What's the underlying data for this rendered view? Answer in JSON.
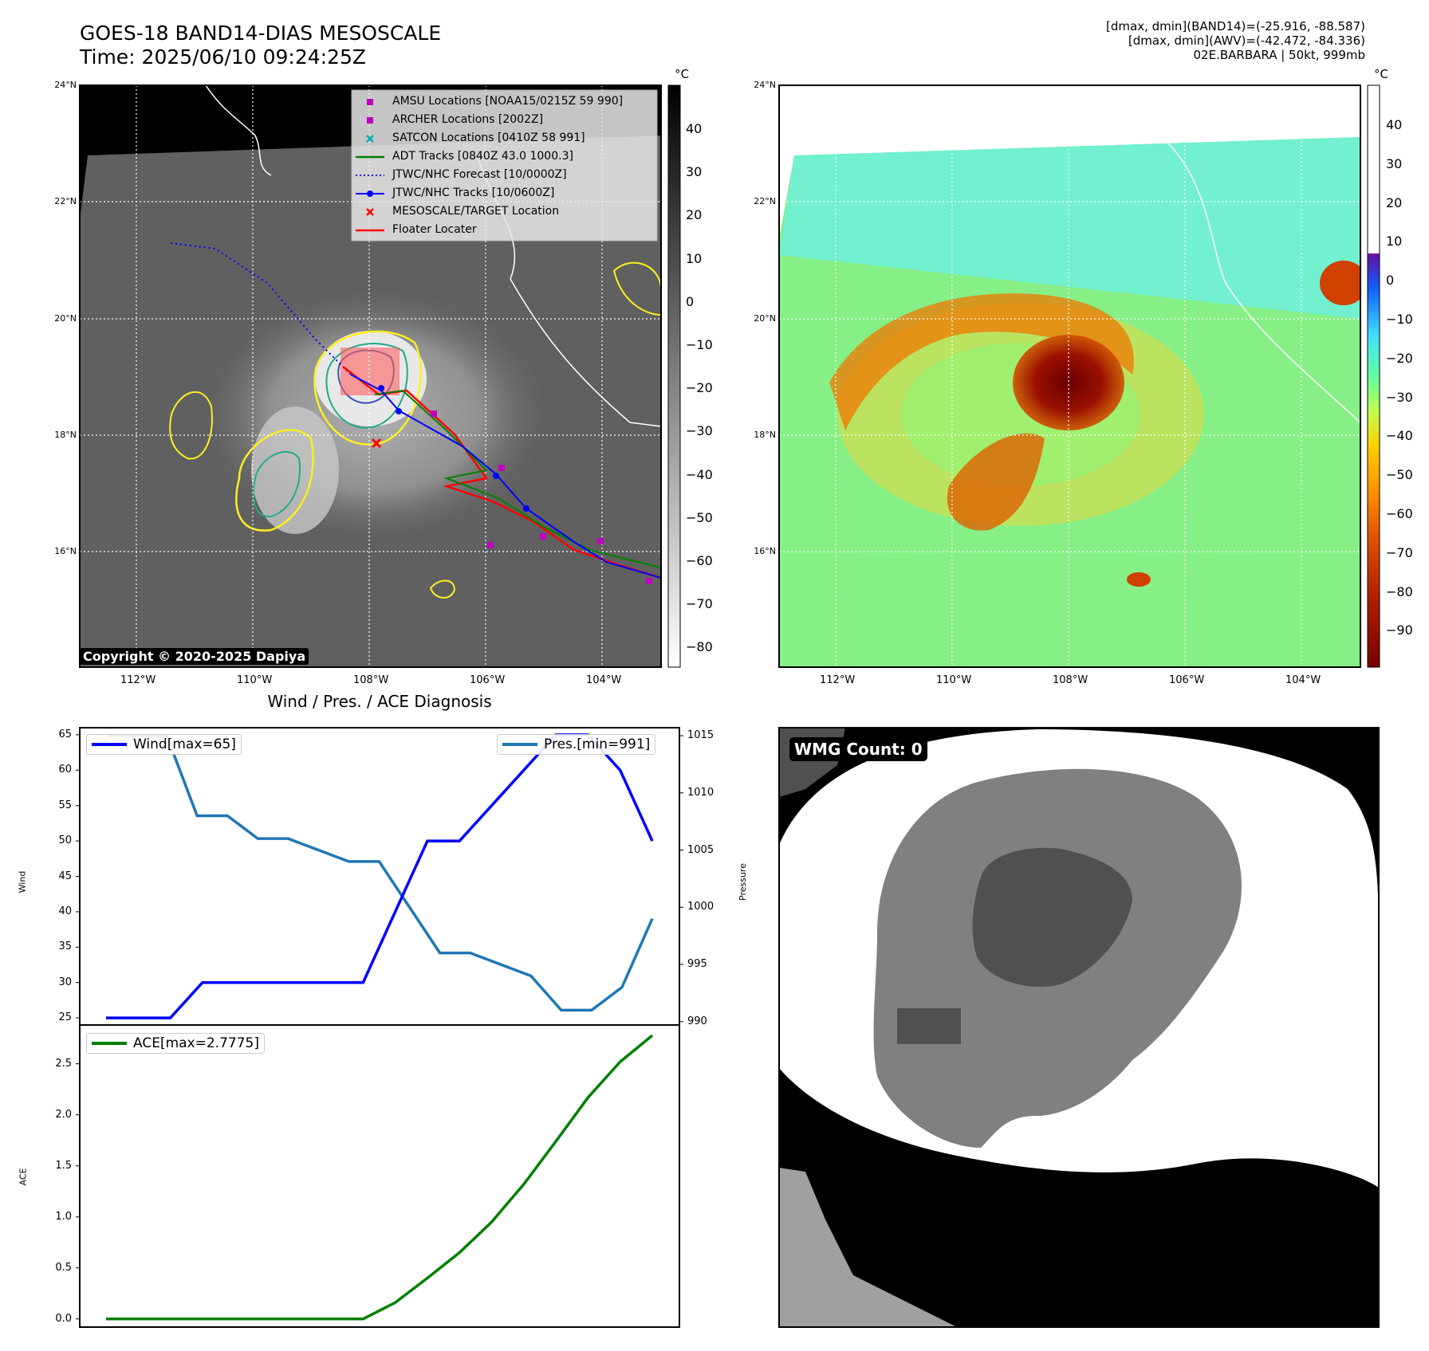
{
  "header": {
    "title_line1": "GOES-18 BAND14-DIAS MESOSCALE",
    "title_line2": "Time: 2025/06/10 09:24:25Z",
    "info_line1": "[dmax, dmin](BAND14)=(-25.916, -88.587)",
    "info_line2": "[dmax, dmin](AWV)=(-42.472, -84.336)",
    "info_line3": "02E.BARBARA | 50kt, 999mb"
  },
  "maps": {
    "lat_labels": [
      "24°N",
      "22°N",
      "20°N",
      "18°N",
      "16°N"
    ],
    "lon_labels": [
      "112°W",
      "110°W",
      "108°W",
      "106°W",
      "104°W"
    ],
    "copyright": "Copyright © 2020-2025 Dapiya",
    "colorbar_unit": "°C",
    "left_colorbar_ticks": [
      "40",
      "30",
      "20",
      "10",
      "0",
      "−10",
      "−20",
      "−30",
      "−40",
      "−50",
      "−60",
      "−70",
      "−80"
    ],
    "right_colorbar_ticks": [
      "40",
      "30",
      "20",
      "10",
      "0",
      "−10",
      "−20",
      "−30",
      "−40",
      "−50",
      "−60",
      "−70",
      "−80",
      "−90"
    ],
    "legend": [
      {
        "label": "AMSU Locations [NOAA15/0215Z 59 990]",
        "color": "#c000c0",
        "marker": "square"
      },
      {
        "label": "ARCHER Locations [2002Z]",
        "color": "#c000c0",
        "marker": "square"
      },
      {
        "label": "SATCON Locations [0410Z 58 991]",
        "color": "#00b0b0",
        "marker": "x"
      },
      {
        "label": "ADT Tracks [0840Z 43.0 1000.3]",
        "color": "#008000",
        "marker": "line"
      },
      {
        "label": "JTWC/NHC Forecast [10/0000Z]",
        "color": "#0000ff",
        "marker": "dotted"
      },
      {
        "label": "JTWC/NHC Tracks [10/0600Z]",
        "color": "#0000ff",
        "marker": "dotline"
      },
      {
        "label": "MESOSCALE/TARGET Location",
        "color": "#ff0000",
        "marker": "x"
      },
      {
        "label": "Floater Locater",
        "color": "#ff0000",
        "marker": "line"
      }
    ]
  },
  "wmg": {
    "label": "WMG Count: 0"
  },
  "chart_data": [
    {
      "type": "line",
      "title": "Wind / Pres. / ACE Diagnosis",
      "ylabel": "Wind",
      "y2label": "Pressure",
      "ylim": [
        24,
        66
      ],
      "y2lim": [
        989.7,
        1015.7
      ],
      "yticks": [
        25,
        30,
        35,
        40,
        45,
        50,
        55,
        60,
        65
      ],
      "y2ticks": [
        990,
        995,
        1000,
        1005,
        1010,
        1015
      ],
      "series": [
        {
          "name": "Wind[max=65]",
          "axis": "left",
          "color": "#0000ff",
          "values": [
            25,
            25,
            25,
            30,
            30,
            30,
            30,
            30,
            30,
            40,
            50,
            50,
            55,
            60,
            65,
            65,
            60,
            50
          ]
        },
        {
          "name": "Pres.[min=991]",
          "axis": "right",
          "color": "#1f77b4",
          "values": [
            1015,
            1015,
            1015,
            1008,
            1008,
            1006,
            1006,
            1005,
            1004,
            1004,
            1000,
            996,
            996,
            995,
            994,
            991,
            991,
            993,
            999
          ]
        }
      ],
      "wind_x": [
        0,
        1,
        2,
        3,
        4,
        5,
        6,
        7,
        8,
        9,
        10,
        11,
        12,
        13,
        14,
        15,
        16,
        17
      ],
      "pres_x": [
        0,
        1,
        2,
        3,
        4,
        5,
        6,
        7,
        8,
        9,
        10,
        11,
        12,
        13,
        14,
        15,
        16,
        17,
        18
      ],
      "legend": "top-left / top-right"
    },
    {
      "type": "line",
      "ylabel": "ACE",
      "ylim": [
        -0.08,
        2.88
      ],
      "yticks": [
        "0.0",
        "0.5",
        "1.0",
        "1.5",
        "2.0",
        "2.5"
      ],
      "series": [
        {
          "name": "ACE[max=2.7775]",
          "color": "#008000",
          "values": [
            0,
            0,
            0,
            0,
            0,
            0,
            0,
            0,
            0,
            0.16,
            0.4,
            0.65,
            0.95,
            1.32,
            1.74,
            2.17,
            2.52,
            2.7775
          ]
        }
      ],
      "legend": "top-left"
    }
  ]
}
